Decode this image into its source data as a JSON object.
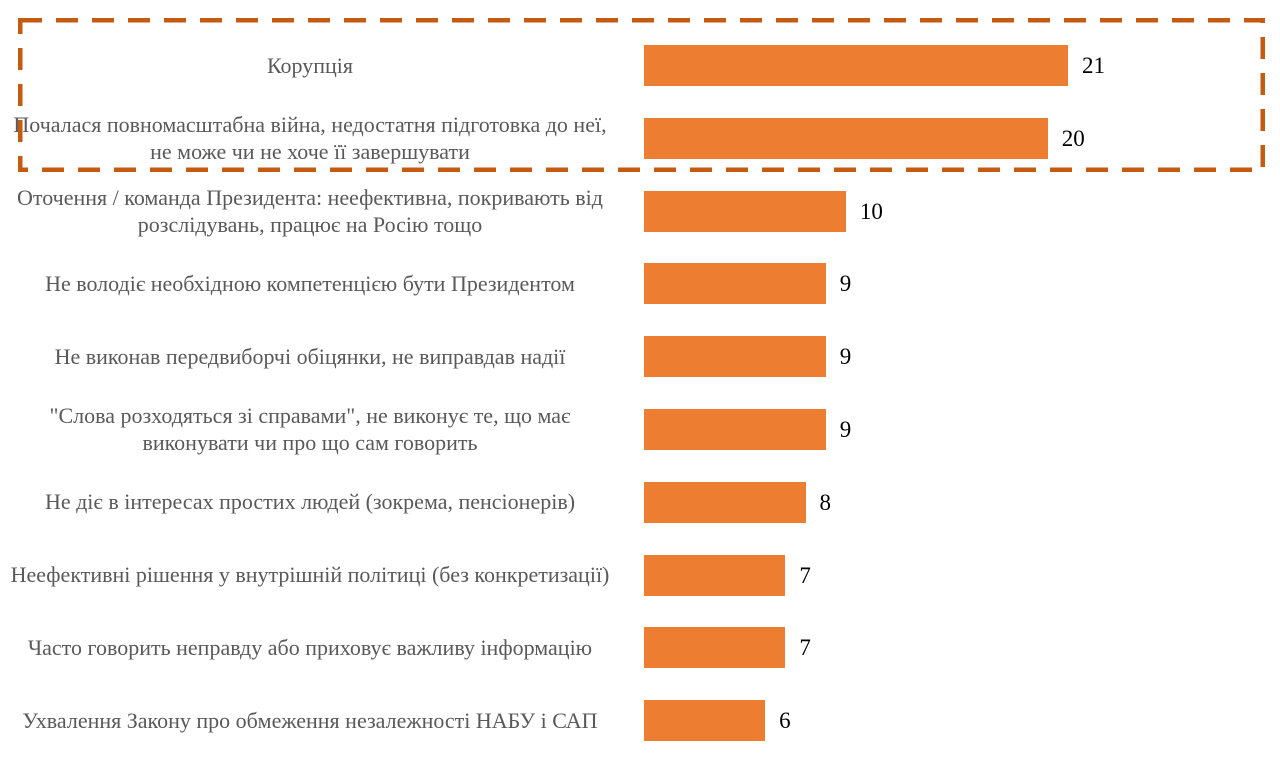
{
  "chart_data": {
    "type": "bar",
    "orientation": "horizontal",
    "categories": [
      "Корупція",
      "Почалася повномасштабна війна, недостатня підготовка до неї, не може чи не хоче її завершувати",
      "Оточення / команда Президента: неефективна, покривають від розслідувань, працює на Росію тощо",
      "Не володіє необхідною компетенцією бути Президентом",
      "Не виконав передвиборчі обіцянки, не виправдав надії",
      "\"Слова розходяться зі справами\", не виконує те, що має виконувати чи про що сам говорить",
      "Не діє в інтересах простих людей (зокрема, пенсіонерів)",
      "Неефективні рішення у внутрішній політиці (без конкретизації)",
      "Часто говорить неправду або приховує важливу інформацію",
      "Ухвалення Закону про обмеження незалежності НАБУ і САП"
    ],
    "values": [
      21,
      20,
      10,
      9,
      9,
      9,
      8,
      7,
      7,
      6
    ],
    "xlim": [
      0,
      21
    ],
    "grid": false,
    "highlighted_categories": [
      0,
      1
    ],
    "colors": {
      "bar": "#ED7D31",
      "highlight_box": "#C55A11",
      "label": "#595959"
    }
  }
}
